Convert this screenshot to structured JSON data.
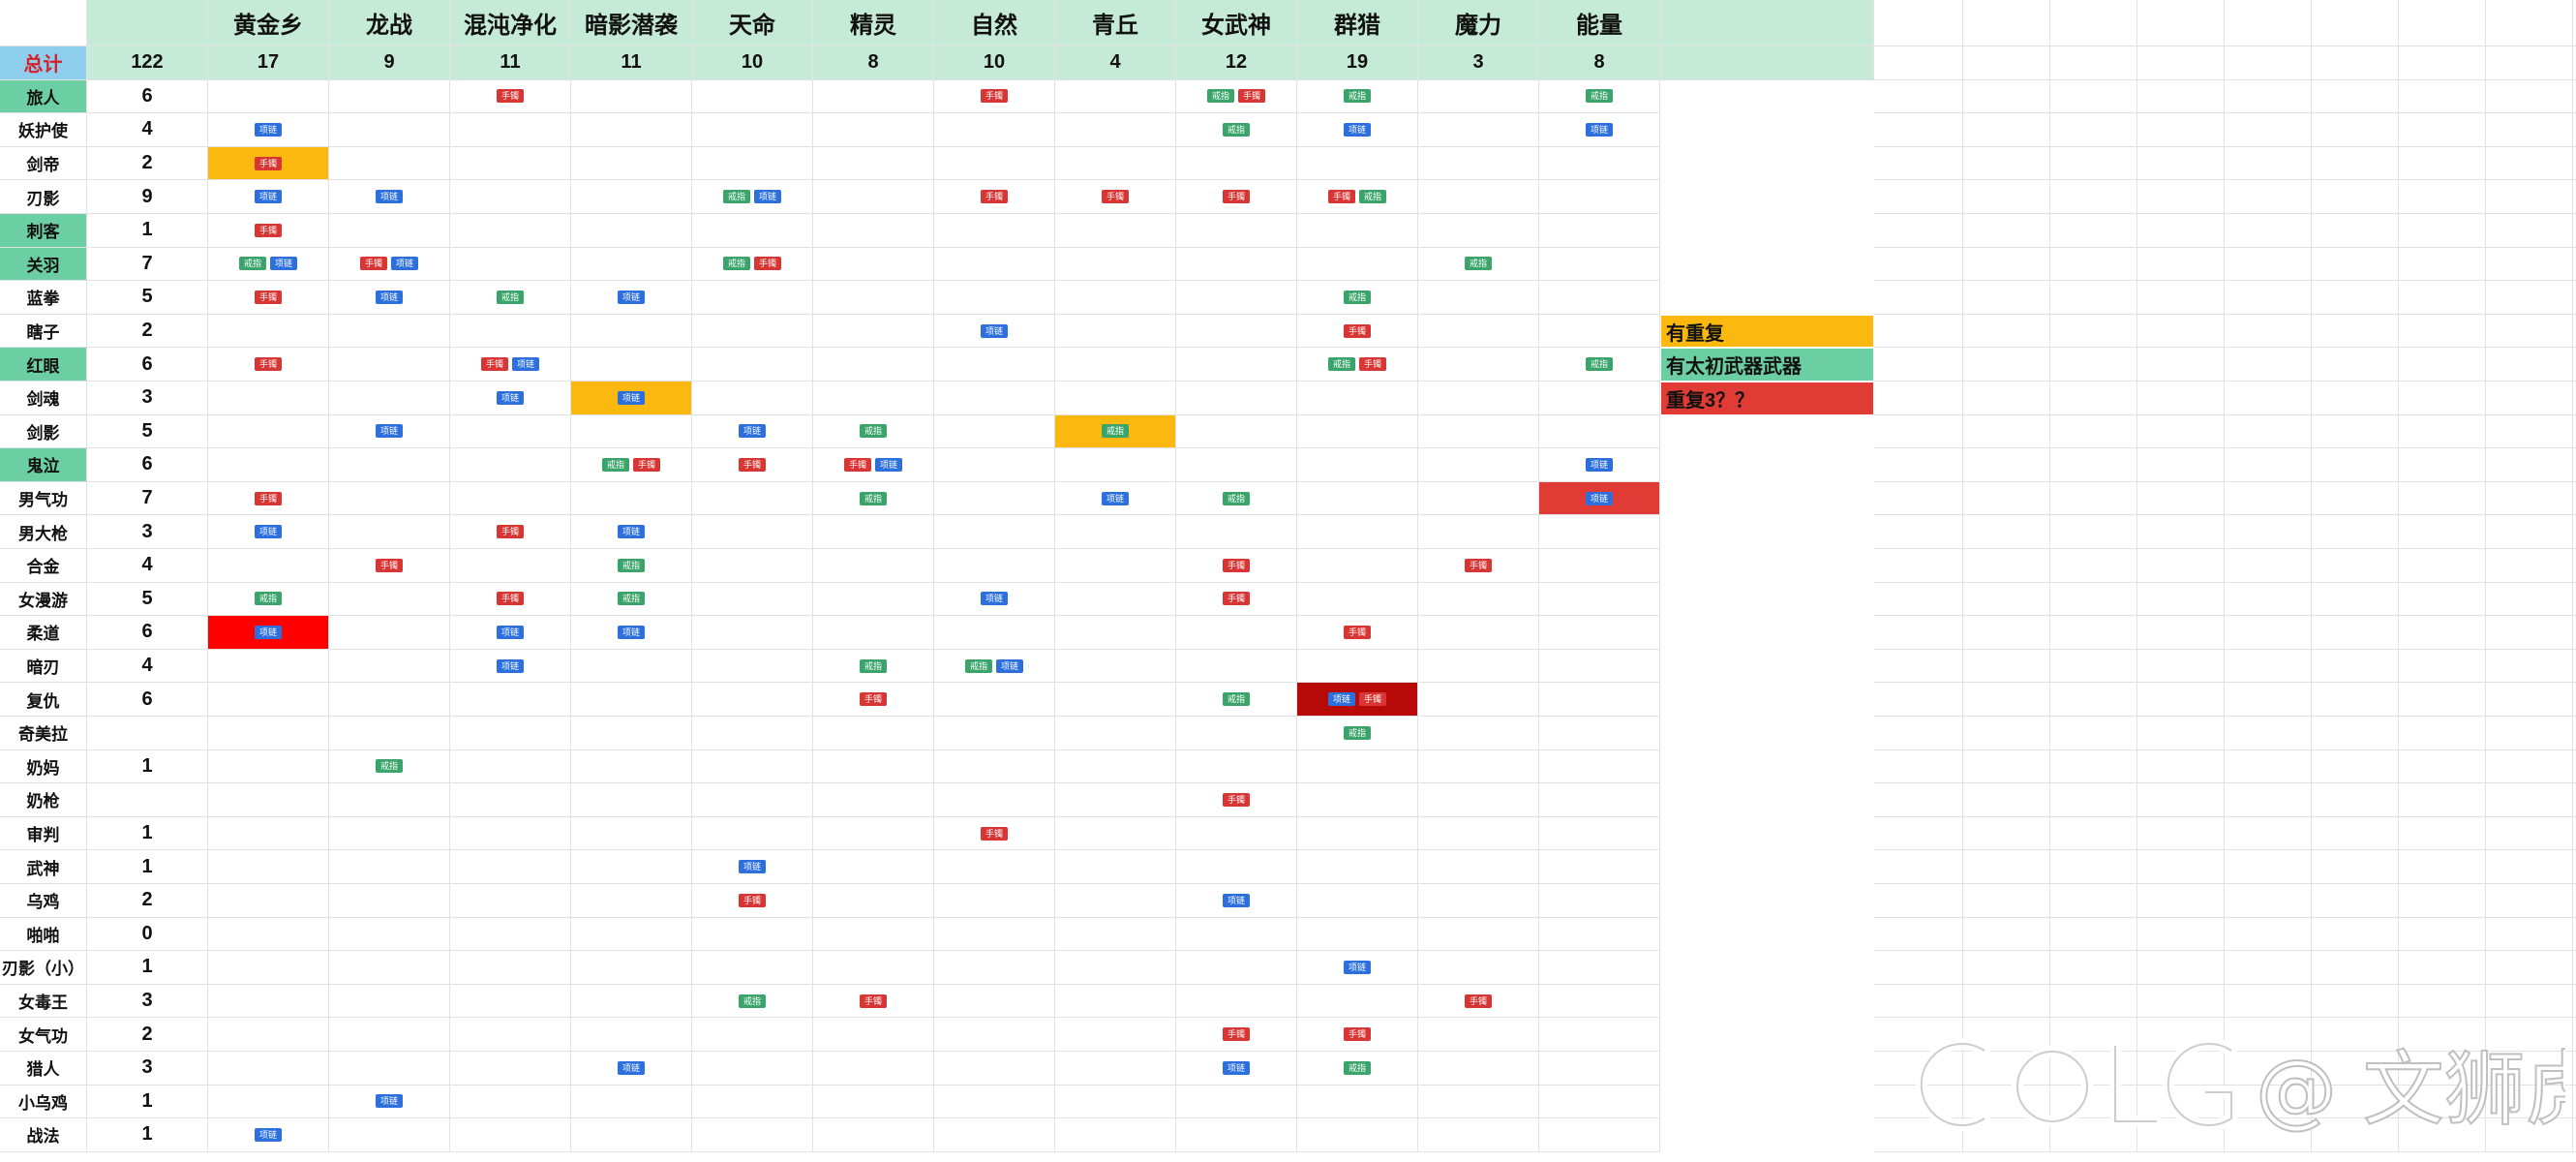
{
  "colors": {
    "header_bg": "#c5ead7",
    "total_label_bg": "#8ecfee",
    "total_label_text": "#d6202a",
    "weapon_green_bg": "#6ccfa3",
    "dup_yellow": "#fbb90f",
    "dup3_red": "#e03c35",
    "bright_red": "#ff0000",
    "dark_red": "#b80909",
    "tag_colors": {
      "手镯": "#d83535",
      "项链": "#2c6fdd",
      "戒指": "#3aa46a"
    }
  },
  "header": {
    "total_label": "总计",
    "grand_total": "122",
    "categories": [
      "黄金乡",
      "龙战",
      "混沌净化",
      "暗影潜袭",
      "天命",
      "精灵",
      "自然",
      "青丘",
      "女武神",
      "群猎",
      "魔力",
      "能量"
    ],
    "category_totals": [
      "17",
      "9",
      "11",
      "11",
      "10",
      "8",
      "10",
      "4",
      "12",
      "19",
      "3",
      "8"
    ]
  },
  "rows": [
    {
      "name": "旅人",
      "total": "6",
      "hl": "green",
      "cells": [
        [],
        [],
        [
          "手镯"
        ],
        [],
        [],
        [],
        [
          "手镯"
        ],
        [],
        [
          "戒指",
          "手镯"
        ],
        [
          "戒指"
        ],
        [],
        [
          "戒指"
        ]
      ]
    },
    {
      "name": "妖护使",
      "total": "4",
      "cells": [
        [
          "项链"
        ],
        [],
        [],
        [],
        [],
        [],
        [],
        [],
        [
          "戒指"
        ],
        [
          "项链"
        ],
        [],
        [
          "项链"
        ]
      ]
    },
    {
      "name": "剑帝",
      "total": "2",
      "cells": [
        [
          "手镯"
        ],
        [],
        [],
        [],
        [],
        [],
        [],
        [],
        [],
        [],
        [],
        []
      ]
    },
    {
      "name": "刃影",
      "total": "9",
      "cells": [
        [
          "项链"
        ],
        [
          "项链"
        ],
        [],
        [],
        [
          "戒指",
          "项链"
        ],
        [],
        [
          "手镯"
        ],
        [
          "手镯"
        ],
        [
          "手镯"
        ],
        [
          "手镯",
          "戒指"
        ],
        [],
        []
      ]
    },
    {
      "name": "刺客",
      "total": "1",
      "hl": "green",
      "cells": [
        [
          "手镯"
        ],
        [],
        [],
        [],
        [],
        [],
        [],
        [],
        [],
        [],
        [],
        []
      ]
    },
    {
      "name": "关羽",
      "total": "7",
      "hl": "green",
      "cells": [
        [
          "戒指",
          "项链"
        ],
        [
          "手镯",
          "项链"
        ],
        [],
        [],
        [
          "戒指",
          "手镯"
        ],
        [],
        [],
        [],
        [],
        [],
        [
          "戒指"
        ],
        []
      ]
    },
    {
      "name": "蓝拳",
      "total": "5",
      "cells": [
        [
          "手镯"
        ],
        [
          "项链"
        ],
        [
          "戒指"
        ],
        [
          "项链"
        ],
        [],
        [],
        [],
        [],
        [],
        [
          "戒指"
        ],
        [],
        []
      ]
    },
    {
      "name": "瞎子",
      "total": "2",
      "cells": [
        [],
        [],
        [],
        [],
        [],
        [],
        [
          "项链"
        ],
        [],
        [],
        [
          "手镯"
        ],
        [],
        []
      ]
    },
    {
      "name": "红眼",
      "total": "6",
      "hl": "green",
      "cells": [
        [
          "手镯"
        ],
        [],
        [
          "手镯",
          "项链"
        ],
        [],
        [],
        [],
        [],
        [],
        [],
        [
          "戒指",
          "手镯"
        ],
        [],
        [
          "戒指"
        ]
      ]
    },
    {
      "name": "剑魂",
      "total": "3",
      "cells": [
        [],
        [],
        [
          "项链"
        ],
        [
          "项链"
        ],
        [],
        [],
        [],
        [],
        [],
        [],
        [],
        []
      ]
    },
    {
      "name": "剑影",
      "total": "5",
      "cells": [
        [],
        [
          "项链"
        ],
        [],
        [],
        [
          "项链"
        ],
        [
          "戒指"
        ],
        [],
        [
          "戒指"
        ],
        [],
        [],
        [],
        []
      ]
    },
    {
      "name": "鬼泣",
      "total": "6",
      "hl": "green",
      "cells": [
        [],
        [],
        [],
        [
          "戒指",
          "手镯"
        ],
        [
          "手镯"
        ],
        [
          "手镯",
          "项链"
        ],
        [],
        [],
        [],
        [],
        [],
        [
          "项链"
        ]
      ]
    },
    {
      "name": "男气功",
      "total": "7",
      "cells": [
        [
          "手镯"
        ],
        [],
        [],
        [],
        [],
        [
          "戒指"
        ],
        [],
        [
          "项链"
        ],
        [
          "戒指"
        ],
        [],
        [],
        [
          "项链"
        ]
      ]
    },
    {
      "name": "男大枪",
      "total": "3",
      "cells": [
        [
          "项链"
        ],
        [],
        [
          "手镯"
        ],
        [
          "项链"
        ],
        [],
        [],
        [],
        [],
        [],
        [],
        [],
        []
      ]
    },
    {
      "name": "合金",
      "total": "4",
      "cells": [
        [],
        [
          "手镯"
        ],
        [],
        [
          "戒指"
        ],
        [],
        [],
        [],
        [],
        [
          "手镯"
        ],
        [],
        [
          "手镯"
        ],
        []
      ]
    },
    {
      "name": "女漫游",
      "total": "5",
      "cells": [
        [
          "戒指"
        ],
        [],
        [
          "手镯"
        ],
        [
          "戒指"
        ],
        [],
        [],
        [
          "项链"
        ],
        [],
        [
          "手镯"
        ],
        [],
        [],
        []
      ]
    },
    {
      "name": "柔道",
      "total": "6",
      "cells": [
        [
          "项链"
        ],
        [],
        [
          "项链"
        ],
        [
          "项链"
        ],
        [],
        [],
        [],
        [],
        [],
        [
          "手镯"
        ],
        [],
        []
      ]
    },
    {
      "name": "暗刃",
      "total": "4",
      "cells": [
        [],
        [],
        [
          "项链"
        ],
        [],
        [],
        [
          "戒指"
        ],
        [
          "戒指",
          "项链"
        ],
        [],
        [],
        [],
        [],
        []
      ]
    },
    {
      "name": "复仇",
      "total": "6",
      "cells": [
        [],
        [],
        [],
        [],
        [],
        [
          "手镯"
        ],
        [],
        [],
        [
          "戒指"
        ],
        [
          "项链",
          "手镯"
        ],
        [],
        []
      ]
    },
    {
      "name": "奇美拉",
      "total": "",
      "cells": [
        [],
        [],
        [],
        [],
        [],
        [],
        [],
        [],
        [],
        [
          "戒指"
        ],
        [],
        []
      ]
    },
    {
      "name": "奶妈",
      "total": "1",
      "cells": [
        [],
        [
          "戒指"
        ],
        [],
        [],
        [],
        [],
        [],
        [],
        [],
        [],
        [],
        []
      ]
    },
    {
      "name": "奶枪",
      "total": "",
      "cells": [
        [],
        [],
        [],
        [],
        [],
        [],
        [],
        [],
        [
          "手镯"
        ],
        [],
        [],
        []
      ]
    },
    {
      "name": "审判",
      "total": "1",
      "cells": [
        [],
        [],
        [],
        [],
        [],
        [],
        [
          "手镯"
        ],
        [],
        [],
        [],
        [],
        []
      ]
    },
    {
      "name": "武神",
      "total": "1",
      "cells": [
        [],
        [],
        [],
        [],
        [
          "项链"
        ],
        [],
        [],
        [],
        [],
        [],
        [],
        []
      ]
    },
    {
      "name": "乌鸡",
      "total": "2",
      "cells": [
        [],
        [],
        [],
        [],
        [
          "手镯"
        ],
        [],
        [],
        [],
        [
          "项链"
        ],
        [],
        [],
        []
      ]
    },
    {
      "name": "啪啪",
      "total": "0",
      "cells": [
        [],
        [],
        [],
        [],
        [],
        [],
        [],
        [],
        [],
        [],
        [],
        []
      ]
    },
    {
      "name": "刃影（小）",
      "total": "1",
      "cells": [
        [],
        [],
        [],
        [],
        [],
        [],
        [],
        [],
        [],
        [
          "项链"
        ],
        [],
        []
      ]
    },
    {
      "name": "女毒王",
      "total": "3",
      "cells": [
        [],
        [],
        [],
        [],
        [
          "戒指"
        ],
        [
          "手镯"
        ],
        [],
        [],
        [],
        [],
        [
          "手镯"
        ],
        []
      ]
    },
    {
      "name": "女气功",
      "total": "2",
      "cells": [
        [],
        [],
        [],
        [],
        [],
        [],
        [],
        [],
        [
          "手镯"
        ],
        [
          "手镯"
        ],
        [],
        []
      ]
    },
    {
      "name": "猎人",
      "total": "3",
      "cells": [
        [],
        [],
        [],
        [
          "项链"
        ],
        [],
        [],
        [],
        [],
        [
          "项链"
        ],
        [
          "戒指"
        ],
        [],
        []
      ]
    },
    {
      "name": "小乌鸡",
      "total": "1",
      "cells": [
        [],
        [
          "项链"
        ],
        [],
        [],
        [],
        [],
        [],
        [],
        [],
        [],
        [],
        []
      ]
    },
    {
      "name": "战法",
      "total": "1",
      "cells": [
        [
          "项链"
        ],
        [],
        [],
        [],
        [],
        [],
        [],
        [],
        [],
        [],
        [],
        []
      ]
    }
  ],
  "cell_highlights": [
    {
      "row": 2,
      "col": 0,
      "color": "yellow"
    },
    {
      "row": 9,
      "col": 3,
      "color": "yellow"
    },
    {
      "row": 10,
      "col": 7,
      "color": "yellow"
    },
    {
      "row": 12,
      "col": 11,
      "color": "red"
    },
    {
      "row": 16,
      "col": 0,
      "color": "bright_red"
    },
    {
      "row": 18,
      "col": 9,
      "color": "dark_red"
    }
  ],
  "legend": [
    {
      "label": "有重复",
      "color": "yellow"
    },
    {
      "label": "有太初武器武器",
      "color": "green"
    },
    {
      "label": "重复3？？",
      "color": "red"
    }
  ],
  "watermark": "COLG @ 文狮虎"
}
